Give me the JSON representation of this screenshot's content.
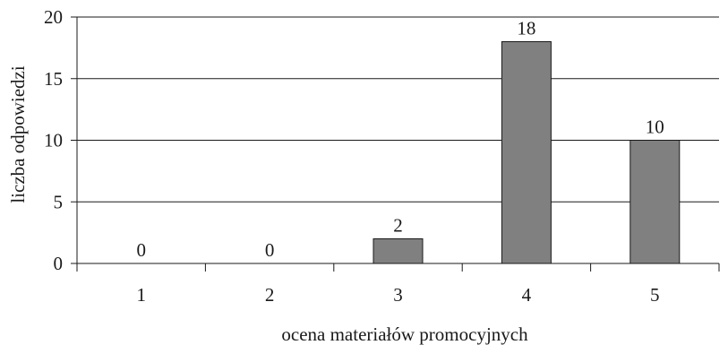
{
  "chart_data": {
    "type": "bar",
    "categories": [
      "1",
      "2",
      "3",
      "4",
      "5"
    ],
    "values": [
      0,
      0,
      2,
      18,
      10
    ],
    "data_labels": [
      "0",
      "0",
      "2",
      "18",
      "10"
    ],
    "title": "",
    "xlabel": "ocena materiałów promocyjnych",
    "ylabel": "liczba odpowiedzi",
    "ylim": [
      0,
      20
    ],
    "yticks": [
      0,
      5,
      10,
      15,
      20
    ],
    "ytick_labels": [
      "0",
      "5",
      "10",
      "15",
      "20"
    ],
    "grid": true,
    "legend": "none",
    "colors": {
      "bar_fill": "#808080",
      "bar_stroke": "#1a1a1a",
      "gridline": "#1a1a1a",
      "axis": "#1a1a1a"
    }
  }
}
